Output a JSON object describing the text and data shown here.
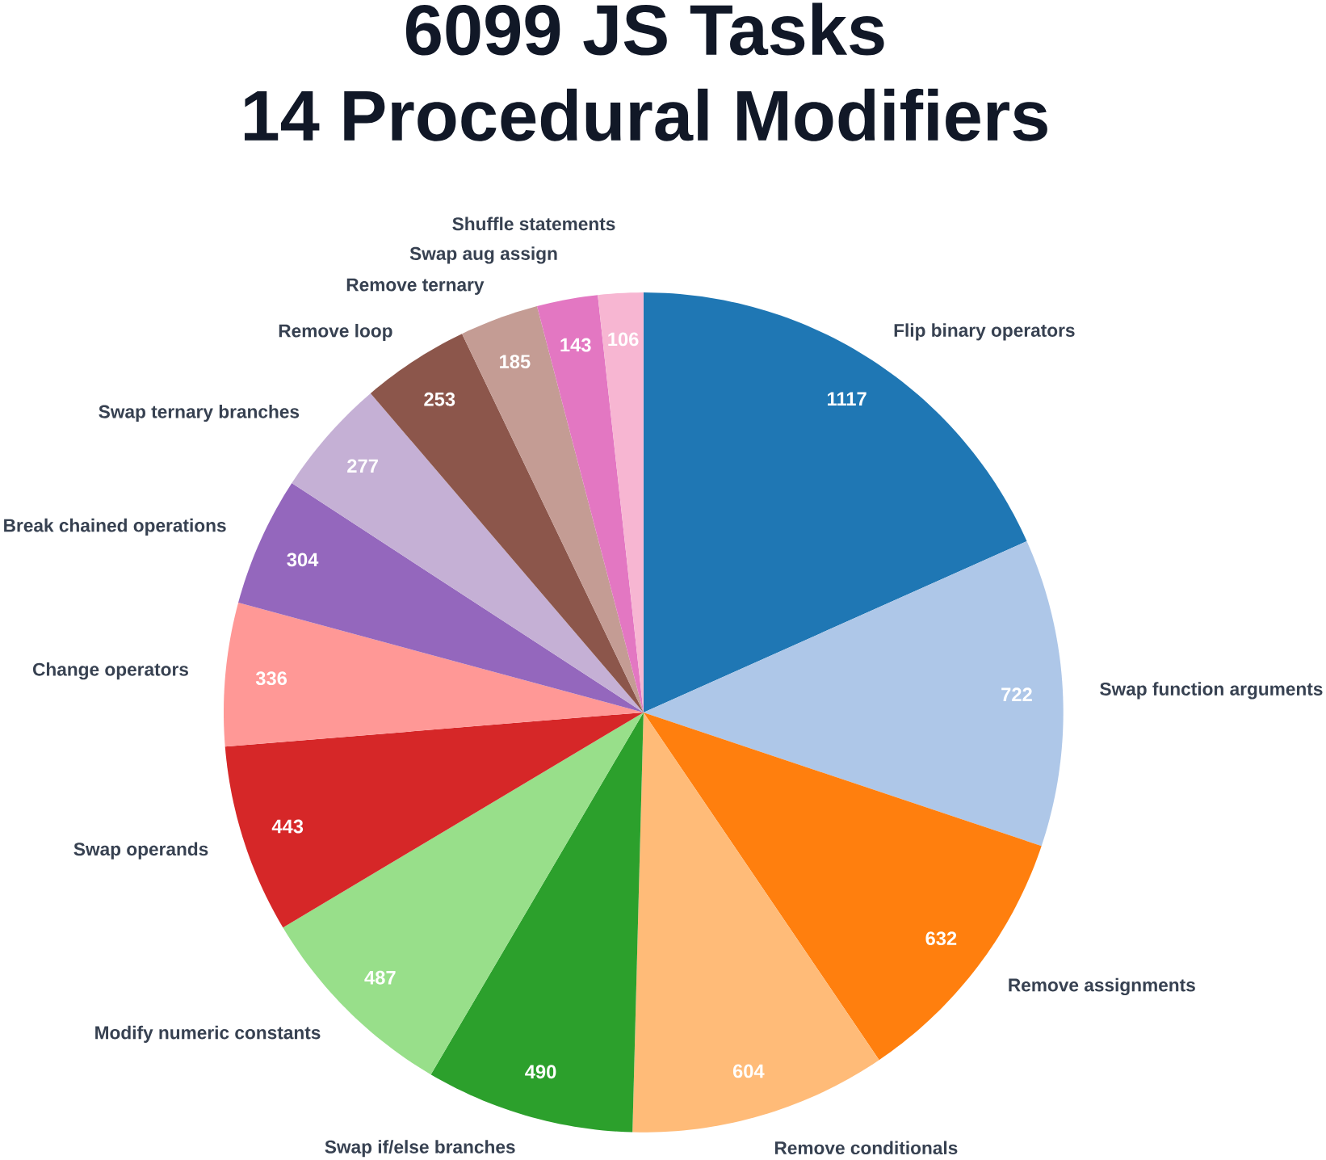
{
  "chart_data": {
    "type": "pie",
    "title": "6099 JS Tasks",
    "subtitle": "14 Procedural Modifiers",
    "categories": [
      "Flip binary operators",
      "Swap function arguments",
      "Remove assignments",
      "Remove conditionals",
      "Swap if/else branches",
      "Modify numeric constants",
      "Swap operands",
      "Change operators",
      "Break chained operations",
      "Swap ternary branches",
      "Remove loop",
      "Remove ternary",
      "Swap aug assign",
      "Shuffle statements"
    ],
    "values": [
      1117,
      722,
      632,
      604,
      490,
      487,
      443,
      336,
      304,
      277,
      253,
      185,
      143,
      106
    ],
    "colors": [
      "#1f77b4",
      "#aec7e8",
      "#ff7f0e",
      "#ffbb78",
      "#2ca02c",
      "#98df8a",
      "#d62728",
      "#ff9896",
      "#9467bd",
      "#c5b0d5",
      "#8c564b",
      "#c49c94",
      "#e377c2",
      "#f7b6d2"
    ],
    "data_labels": true
  }
}
